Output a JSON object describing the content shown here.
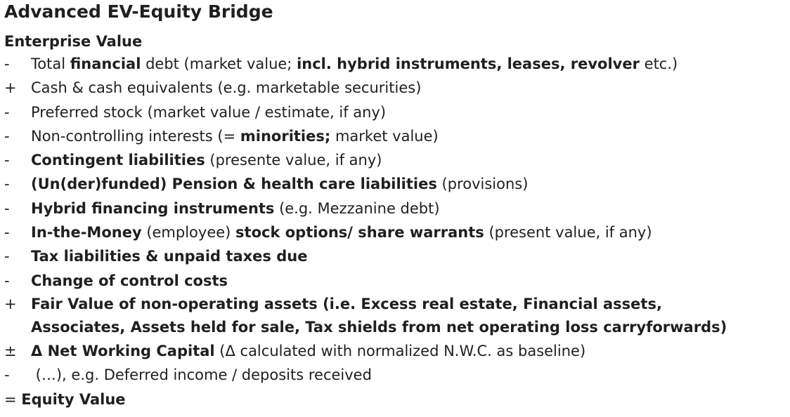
{
  "title": "Advanced EV-Equity Bridge",
  "subtitle": "Enterprise Value",
  "items": [
    {
      "sign": "-",
      "parts": [
        {
          "t": "Total ",
          "b": false
        },
        {
          "t": "financial",
          "b": true
        },
        {
          "t": " debt (market value; ",
          "b": false
        },
        {
          "t": "incl. hybrid instruments, leases, revolver",
          "b": true
        },
        {
          "t": " etc.)",
          "b": false
        }
      ]
    },
    {
      "sign": "+",
      "parts": [
        {
          "t": "Cash & cash equivalents (e.g. marketable securities)",
          "b": false
        }
      ]
    },
    {
      "sign": "-",
      "parts": [
        {
          "t": "Preferred stock (market value / estimate, if any)",
          "b": false
        }
      ]
    },
    {
      "sign": "-",
      "parts": [
        {
          "t": "Non-controlling interests (= ",
          "b": false
        },
        {
          "t": "minorities;",
          "b": true
        },
        {
          "t": " market value)",
          "b": false
        }
      ]
    },
    {
      "sign": "-",
      "parts": [
        {
          "t": "Contingent liabilities",
          "b": true
        },
        {
          "t": " (presente value, if any)",
          "b": false
        }
      ]
    },
    {
      "sign": "-",
      "parts": [
        {
          "t": "(Un(der)funded) Pension & health care liabilities",
          "b": true
        },
        {
          "t": " (provisions)",
          "b": false
        }
      ]
    },
    {
      "sign": "-",
      "parts": [
        {
          "t": "Hybrid financing instruments",
          "b": true
        },
        {
          "t": " (e.g. Mezzanine debt)",
          "b": false
        }
      ]
    },
    {
      "sign": "-",
      "parts": [
        {
          "t": "In-the-Money",
          "b": true
        },
        {
          "t": " (employee) ",
          "b": false
        },
        {
          "t": "stock options/ share warrants",
          "b": true
        },
        {
          "t": " (present value, if any)",
          "b": false
        }
      ]
    },
    {
      "sign": "-",
      "parts": [
        {
          "t": "Tax liabilities & unpaid taxes due",
          "b": true
        }
      ]
    },
    {
      "sign": "-",
      "parts": [
        {
          "t": "Change of control costs",
          "b": true
        }
      ]
    },
    {
      "sign": "+",
      "multi": true,
      "parts": [
        {
          "t": "Fair Value of non-operating assets (i.e. Excess real estate, Financial assets,",
          "b": true
        },
        {
          "t": "Associates, Assets held for sale, Tax shields from net operating loss carryforwards)",
          "b": true,
          "newline": true
        }
      ]
    },
    {
      "sign": "±",
      "parts": [
        {
          "t": "Δ Net Working Capital",
          "b": true
        },
        {
          "t": " (Δ calculated with normalized N.W.C. as baseline)",
          "b": false
        }
      ]
    },
    {
      "sign": "-",
      "parts": [
        {
          "t": " (…), e.g. Deferred income / deposits received",
          "b": false
        }
      ]
    }
  ],
  "footer": {
    "prefix": "= ",
    "label": "Equity Value"
  }
}
